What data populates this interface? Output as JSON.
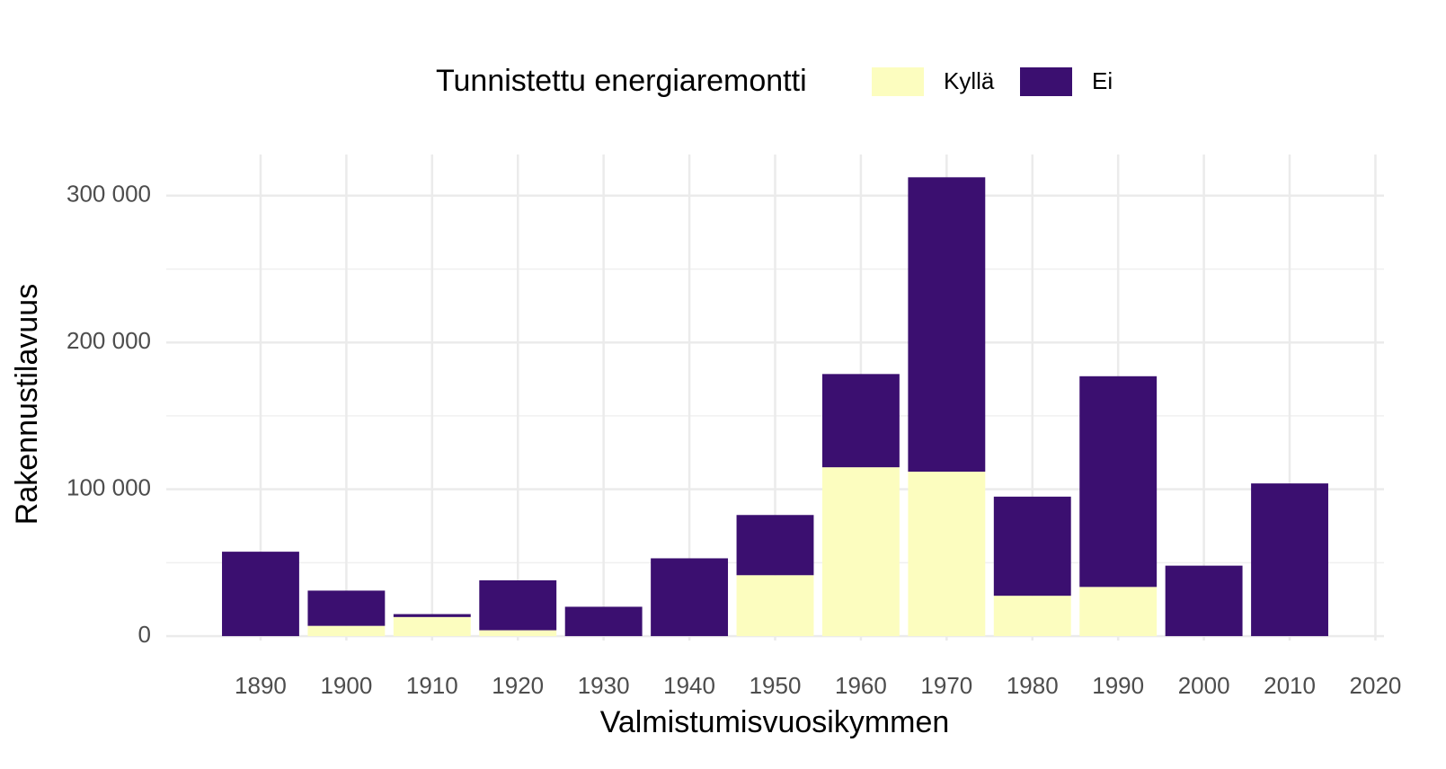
{
  "chart_data": {
    "type": "stacked_bar",
    "legend_title": "Tunnistettu energiaremontti",
    "legend_position": "top",
    "x_label": "Valmistumisvuosikymmen",
    "y_label": "Rakennustilavuus",
    "x": [
      1890,
      1900,
      1910,
      1920,
      1930,
      1940,
      1950,
      1960,
      1970,
      1980,
      1990,
      2000,
      2010
    ],
    "series": [
      {
        "name": "Kyllä",
        "color": "#fcfdbf",
        "values": [
          0,
          7000,
          13000,
          4000,
          0,
          0,
          41500,
          115000,
          112000,
          27500,
          33500,
          0,
          0
        ]
      },
      {
        "name": "Ei",
        "color": "#3b0f70",
        "values": [
          57500,
          24000,
          2000,
          34000,
          20000,
          53000,
          41000,
          63500,
          200500,
          67500,
          143500,
          48000,
          104000
        ]
      }
    ],
    "xlim": [
      1879,
      2021
    ],
    "xticks": [
      1890,
      1900,
      1910,
      1920,
      1930,
      1940,
      1950,
      1960,
      1970,
      1980,
      1990,
      2000,
      2010,
      2020
    ],
    "ylim": [
      -3000,
      328000
    ],
    "yticks": [
      0,
      {
        "value": 100000,
        "label": "100 000"
      },
      {
        "value": 200000,
        "label": "200 000"
      },
      {
        "value": 300000,
        "label": "300 000"
      }
    ],
    "y_minor_ticks": [
      50000,
      150000,
      250000
    ],
    "grid": true
  }
}
